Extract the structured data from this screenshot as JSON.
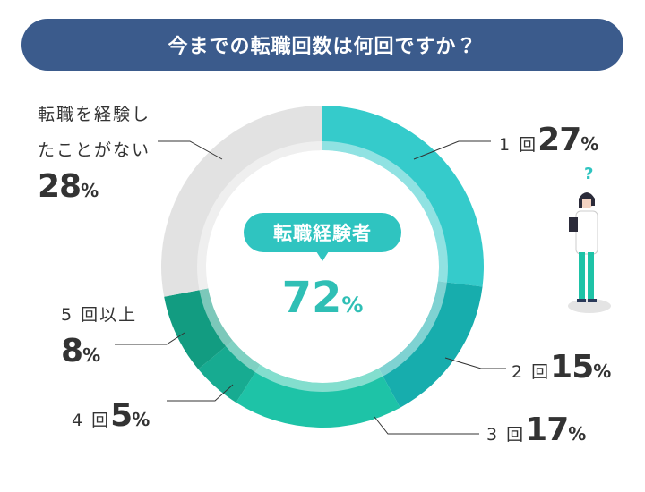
{
  "chart_data": {
    "type": "donut",
    "title": "今までの転職回数は何回ですか？",
    "categories": [
      "1 回",
      "2 回",
      "3 回",
      "4 回",
      "5 回以上",
      "転職を経験したことがない"
    ],
    "values": [
      27,
      15,
      17,
      5,
      8,
      28
    ],
    "colors": [
      "#35cbcb",
      "#17adad",
      "#1ec3a7",
      "#17ab91",
      "#129c81",
      "#e2e2e2"
    ],
    "unit": "%",
    "center_label": "転職経験者",
    "center_value": 72
  }
}
